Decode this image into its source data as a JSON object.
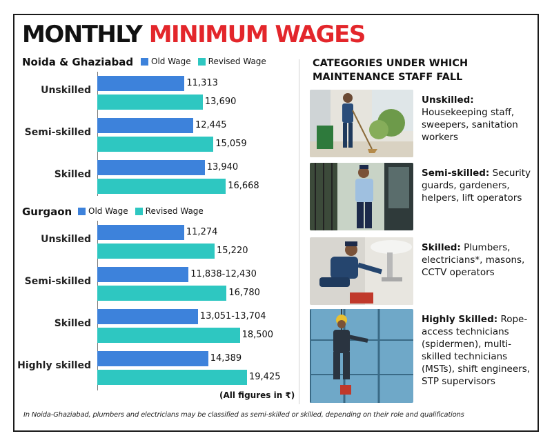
{
  "title": {
    "part1": "MONTHLY",
    "part2": "MINIMUM WAGES"
  },
  "colors": {
    "accent": "#e3262b",
    "old_wage": "#3d82db",
    "revised_wage": "#2ec7c1"
  },
  "chart_data": [
    {
      "type": "bar",
      "orientation": "horizontal",
      "region": "Noida & Ghaziabad",
      "categories": [
        "Unskilled",
        "Semi-skilled",
        "Skilled"
      ],
      "series": [
        {
          "name": "Old Wage",
          "values": [
            11313,
            12445,
            13940
          ],
          "labels": [
            "11,313",
            "12,445",
            "13,940"
          ]
        },
        {
          "name": "Revised Wage",
          "values": [
            13690,
            15059,
            16668
          ],
          "labels": [
            "13,690",
            "15,059",
            "16,668"
          ]
        }
      ],
      "legend": "top"
    },
    {
      "type": "bar",
      "orientation": "horizontal",
      "region": "Gurgaon",
      "categories": [
        "Unskilled",
        "Semi-skilled",
        "Skilled",
        "Highly skilled"
      ],
      "series": [
        {
          "name": "Old Wage",
          "values": [
            11274,
            11838,
            13051,
            14389
          ],
          "labels": [
            "11,274",
            "11,838-12,430",
            "13,051-13,704",
            "14,389"
          ]
        },
        {
          "name": "Revised Wage",
          "values": [
            15220,
            16780,
            18500,
            19425
          ],
          "labels": [
            "15,220",
            "16,780",
            "18,500",
            "19,425"
          ]
        }
      ],
      "legend": "top"
    }
  ],
  "units_note": "(All figures in ₹)",
  "footnote": "In Noida-Ghaziabad, plumbers and electricians may be classified as semi-skilled or skilled, depending on their role and qualifications",
  "right_panel": {
    "heading_line1": "CATEGORIES UNDER WHICH",
    "heading_line2": "MAINTENANCE STAFF FALL",
    "items": [
      {
        "label": "Unskilled:",
        "text": "Housekeeping staff, sweepers, sanitation workers",
        "icon": "sweeper-photo"
      },
      {
        "label": "Semi-skilled:",
        "text": "Security guards, gardeners, helpers, lift operators",
        "icon": "security-guard-photo"
      },
      {
        "label": "Skilled:",
        "text": "Plumbers, electricians*, masons, CCTV operators",
        "icon": "plumber-photo"
      },
      {
        "label": "Highly Skilled:",
        "text": "Rope-access technicians (spidermen), multi-skilled technicians (MSTs), shift engineers, STP supervisors",
        "icon": "rope-access-photo"
      }
    ]
  }
}
